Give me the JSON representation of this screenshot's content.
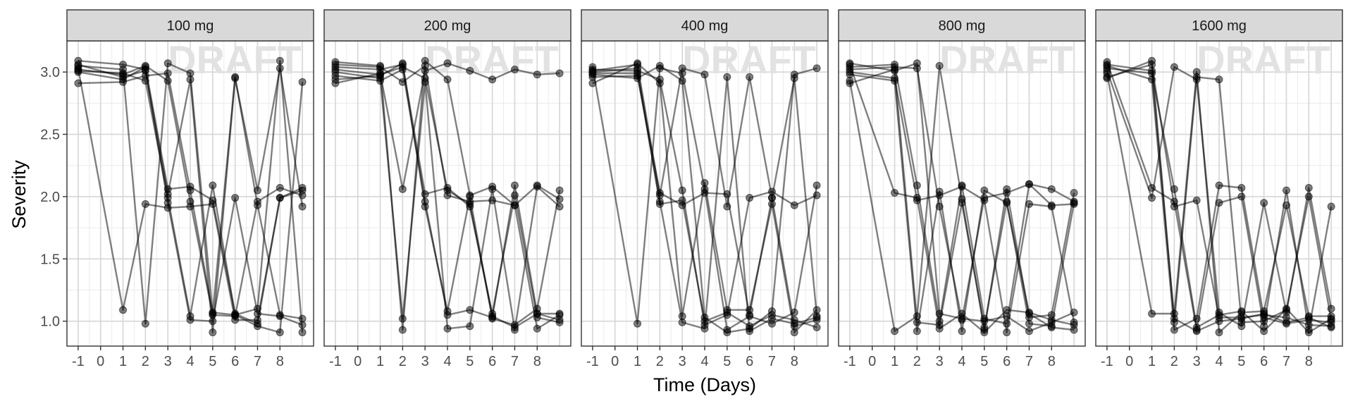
{
  "chart_data": {
    "type": "line",
    "xlabel": "Time (Days)",
    "ylabel": "Severity",
    "watermark": "DRAFT",
    "x_ticks": [
      -1,
      0,
      1,
      2,
      3,
      4,
      5,
      6,
      7,
      8
    ],
    "y_ticks": [
      1.0,
      1.5,
      2.0,
      2.5,
      3.0
    ],
    "y_tick_labels": [
      "1.0",
      "1.5",
      "2.0",
      "2.5",
      "3.0"
    ],
    "xlim": [
      -1.5,
      9.5
    ],
    "ylim": [
      0.8,
      3.25
    ],
    "grid": true,
    "line_color": "#000000",
    "panel_header_color": "#d9d9d9",
    "panels": [
      {
        "label": "100 mg",
        "series": [
          {
            "x": [
              -1,
              1,
              2,
              3,
              4,
              5,
              6,
              7,
              8,
              9
            ],
            "y": [
              3.02,
              2.98,
              3.05,
              2.93,
              1.96,
              1.05,
              1.04,
              1.96,
              2.07,
              2.01
            ]
          },
          {
            "x": [
              -1,
              1,
              2,
              3,
              4,
              5,
              6,
              7,
              8,
              9
            ],
            "y": [
              3.09,
              3.06,
              3.02,
              1.95,
              1.01,
              1.0,
              1.99,
              1.06,
              1.04,
              0.97
            ]
          },
          {
            "x": [
              -1,
              1,
              2,
              3,
              4,
              5,
              6,
              7,
              8,
              9
            ],
            "y": [
              3.0,
              2.94,
              3.04,
              2.06,
              2.08,
              1.97,
              1.06,
              0.98,
              1.99,
              2.07
            ]
          },
          {
            "x": [
              -1,
              1,
              2,
              3,
              4,
              5,
              6,
              7,
              8,
              9
            ],
            "y": [
              2.91,
              2.92,
              2.97,
              2.99,
              2.05,
              1.06,
              2.96,
              1.93,
              1.05,
              1.02
            ]
          },
          {
            "x": [
              -1,
              1,
              2,
              3,
              4,
              5,
              6,
              7,
              8,
              9
            ],
            "y": [
              3.03,
              1.09,
              1.94,
              1.91,
              1.92,
              1.94,
              1.01,
              1.01,
              1.99,
              2.05
            ]
          },
          {
            "x": [
              -1,
              1,
              2,
              3,
              4,
              5,
              6,
              7,
              8,
              9
            ],
            "y": [
              3.05,
              3.02,
              0.98,
              3.07,
              2.99,
              1.07,
              1.05,
              1.1,
              3.09,
              0.91
            ]
          },
          {
            "x": [
              -1,
              1,
              2,
              3,
              4,
              5,
              6,
              7,
              8,
              9
            ],
            "y": [
              3.01,
              2.99,
              2.93,
              1.99,
              1.04,
              2.09,
              1.05,
              0.96,
              0.91,
              2.92
            ]
          },
          {
            "x": [
              -1,
              1,
              2,
              3,
              4,
              5,
              6,
              7,
              8,
              9
            ],
            "y": [
              3.06,
              2.96,
              3.01,
              2.02,
              2.94,
              0.91,
              2.95,
              2.05,
              3.03,
              1.92
            ]
          }
        ]
      },
      {
        "label": "200 mg",
        "series": [
          {
            "x": [
              -1,
              1,
              2,
              3,
              4,
              5,
              6,
              7,
              8,
              9
            ],
            "y": [
              3.02,
              2.98,
              3.04,
              2.95,
              2.05,
              1.94,
              1.04,
              0.95,
              1.06,
              1.01
            ]
          },
          {
            "x": [
              -1,
              1,
              2,
              3,
              4,
              5,
              6,
              7,
              8,
              9
            ],
            "y": [
              3.08,
              3.05,
              0.93,
              3.09,
              2.94,
              2.01,
              2.08,
              1.93,
              2.09,
              1.98
            ]
          },
          {
            "x": [
              -1,
              1,
              2,
              3,
              4,
              5,
              6,
              7,
              8,
              9
            ],
            "y": [
              2.97,
              2.93,
              3.02,
              1.96,
              1.05,
              1.09,
              1.03,
              2.09,
              1.06,
              1.06
            ]
          },
          {
            "x": [
              -1,
              1,
              2,
              3,
              4,
              5,
              6,
              7,
              8,
              9
            ],
            "y": [
              2.91,
              2.99,
              2.06,
              3.01,
              3.07,
              3.01,
              2.94,
              3.02,
              2.98,
              2.99
            ]
          },
          {
            "x": [
              -1,
              1,
              2,
              3,
              4,
              5,
              6,
              7,
              8,
              9
            ],
            "y": [
              3.04,
              3.02,
              3.06,
              2.02,
              2.07,
              1.92,
              1.06,
              2.01,
              1.03,
              0.99
            ]
          },
          {
            "x": [
              -1,
              1,
              2,
              3,
              4,
              5,
              6,
              7,
              8,
              9
            ],
            "y": [
              3.0,
              2.95,
              1.02,
              2.92,
              0.94,
              0.96,
              2.06,
              0.93,
              2.08,
              1.92
            ]
          },
          {
            "x": [
              -1,
              1,
              2,
              3,
              4,
              5,
              6,
              7,
              8,
              9
            ],
            "y": [
              3.06,
              3.04,
              2.92,
              3.05,
              2.01,
              1.96,
              1.97,
              1.93,
              0.94,
              1.05
            ]
          },
          {
            "x": [
              -1,
              1,
              2,
              3,
              4,
              5,
              6,
              7,
              8,
              9
            ],
            "y": [
              2.94,
              2.97,
              3.07,
              1.92,
              1.08,
              2.0,
              1.02,
              0.97,
              1.1,
              2.05
            ]
          }
        ]
      },
      {
        "label": "400 mg",
        "series": [
          {
            "x": [
              -1,
              1,
              2,
              3,
              4,
              5,
              6,
              7,
              8,
              9
            ],
            "y": [
              3.0,
              3.03,
              1.94,
              1.97,
              1.0,
              1.07,
              0.96,
              1.05,
              1.01,
              0.95
            ]
          },
          {
            "x": [
              -1,
              1,
              2,
              3,
              4,
              5,
              6,
              7,
              8,
              9
            ],
            "y": [
              2.96,
              2.97,
              2.03,
              1.93,
              2.03,
              2.02,
              1.05,
              1.99,
              0.96,
              1.01
            ]
          },
          {
            "x": [
              -1,
              1,
              2,
              3,
              4,
              5,
              6,
              7,
              8,
              9
            ],
            "y": [
              3.04,
              0.98,
              3.03,
              2.99,
              2.06,
              0.93,
              1.04,
              0.98,
              1.07,
              2.09
            ]
          },
          {
            "x": [
              -1,
              1,
              2,
              3,
              4,
              5,
              6,
              7,
              8,
              9
            ],
            "y": [
              2.91,
              3.07,
              2.91,
              1.04,
              2.11,
              1.09,
              1.09,
              1.94,
              0.91,
              1.09
            ]
          },
          {
            "x": [
              -1,
              1,
              2,
              3,
              4,
              5,
              6,
              7,
              8,
              9
            ],
            "y": [
              3.02,
              3.01,
              2.94,
              2.05,
              0.97,
              1.05,
              1.99,
              2.04,
              1.93,
              2.01
            ]
          },
          {
            "x": [
              -1,
              1,
              2,
              3,
              4,
              5,
              6,
              7,
              8,
              9
            ],
            "y": [
              2.98,
              2.95,
              3.05,
              2.93,
              1.03,
              0.91,
              0.94,
              1.08,
              2.98,
              3.03
            ]
          },
          {
            "x": [
              -1,
              1,
              2,
              3,
              4,
              5,
              6,
              7,
              8,
              9
            ],
            "y": [
              3.01,
              3.06,
              2.01,
              3.03,
              2.98,
              1.92,
              2.96,
              1.99,
              2.95,
              1.04
            ]
          },
          {
            "x": [
              -1,
              1,
              2,
              3,
              4,
              5,
              6,
              7,
              8,
              9
            ],
            "y": [
              2.99,
              2.99,
              1.96,
              0.99,
              0.94,
              2.96,
              0.92,
              1.02,
              0.98,
              1.03
            ]
          }
        ]
      },
      {
        "label": "800 mg",
        "series": [
          {
            "x": [
              -1,
              1,
              2,
              3,
              4,
              5,
              6,
              7,
              8,
              9
            ],
            "y": [
              3.02,
              3.04,
              3.03,
              1.92,
              1.01,
              1.99,
              2.03,
              2.1,
              2.06,
              1.96
            ]
          },
          {
            "x": [
              -1,
              1,
              2,
              3,
              4,
              5,
              6,
              7,
              8,
              9
            ],
            "y": [
              3.06,
              2.03,
              1.99,
              0.94,
              1.06,
              0.91,
              1.09,
              1.07,
              1.01,
              0.97
            ]
          },
          {
            "x": [
              -1,
              1,
              2,
              3,
              4,
              5,
              6,
              7,
              8,
              9
            ],
            "y": [
              2.98,
              2.93,
              0.92,
              2.04,
              0.92,
              2.05,
              1.95,
              1.06,
              0.95,
              0.93
            ]
          },
          {
            "x": [
              -1,
              1,
              2,
              3,
              4,
              5,
              6,
              7,
              8,
              9
            ],
            "y": [
              3.04,
              3.06,
              2.09,
              1.0,
              2.09,
              1.02,
              0.98,
              2.1,
              1.93,
              1.94
            ]
          },
          {
            "x": [
              -1,
              1,
              2,
              3,
              4,
              5,
              6,
              7,
              8,
              9
            ],
            "y": [
              2.93,
              0.92,
              1.04,
              3.05,
              1.98,
              0.93,
              2.06,
              1.03,
              1.05,
              2.03
            ]
          },
          {
            "x": [
              -1,
              1,
              2,
              3,
              4,
              5,
              6,
              7,
              8,
              9
            ],
            "y": [
              3.07,
              3.01,
              3.07,
              1.06,
              1.02,
              1.0,
              1.04,
              0.92,
              0.99,
              1.07
            ]
          },
          {
            "x": [
              -1,
              1,
              2,
              3,
              4,
              5,
              6,
              7,
              8,
              9
            ],
            "y": [
              3.0,
              2.95,
              1.97,
              2.01,
              2.08,
              1.97,
              0.91,
              1.94,
              1.92,
              0.99
            ]
          },
          {
            "x": [
              -1,
              1,
              2,
              3,
              4,
              5,
              6,
              7,
              8,
              9
            ],
            "y": [
              2.91,
              3.02,
              0.99,
              0.97,
              1.95,
              0.95,
              1.96,
              0.98,
              0.96,
              1.95
            ]
          }
        ]
      },
      {
        "label": "1600 mg",
        "series": [
          {
            "x": [
              -1,
              1,
              2,
              3,
              4,
              5,
              6,
              7,
              8,
              9
            ],
            "y": [
              3.03,
              2.99,
              2.06,
              0.95,
              1.05,
              1.08,
              0.92,
              1.1,
              0.91,
              1.02
            ]
          },
          {
            "x": [
              -1,
              1,
              2,
              3,
              4,
              5,
              6,
              7,
              8,
              9
            ],
            "y": [
              2.96,
              3.06,
              1.92,
              1.97,
              1.03,
              1.03,
              1.05,
              1.03,
              0.97,
              0.96
            ]
          },
          {
            "x": [
              -1,
              1,
              2,
              3,
              4,
              5,
              6,
              7,
              8,
              9
            ],
            "y": [
              3.08,
              2.07,
              1.96,
              0.93,
              1.95,
              2.0,
              0.96,
              2.05,
              0.93,
              1.92
            ]
          },
          {
            "x": [
              -1,
              1,
              2,
              3,
              4,
              5,
              6,
              7,
              8,
              9
            ],
            "y": [
              3.01,
              1.99,
              3.04,
              2.94,
              1.07,
              0.96,
              1.95,
              1.07,
              2.07,
              1.1
            ]
          },
          {
            "x": [
              -1,
              1,
              2,
              3,
              4,
              5,
              6,
              7,
              8,
              9
            ],
            "y": [
              2.99,
              1.06,
              1.06,
              3.0,
              0.91,
              1.07,
              1.08,
              1.93,
              1.04,
              1.04
            ]
          },
          {
            "x": [
              -1,
              1,
              2,
              3,
              4,
              5,
              6,
              7,
              8,
              9
            ],
            "y": [
              3.05,
              2.94,
              0.93,
              1.02,
              2.09,
              2.07,
              1.03,
              0.98,
              1.01,
              0.99
            ]
          },
          {
            "x": [
              -1,
              1,
              2,
              3,
              4,
              5,
              6,
              7,
              8,
              9
            ],
            "y": [
              2.95,
              3.09,
              0.99,
              2.96,
              2.94,
              0.99,
              1.0,
              1.09,
              2.0,
              1.01
            ]
          },
          {
            "x": [
              -1,
              1,
              2,
              3,
              4,
              5,
              6,
              7,
              8,
              9
            ],
            "y": [
              3.06,
              3.01,
              1.02,
              0.92,
              1.0,
              1.02,
              1.06,
              0.99,
              1.03,
              0.95
            ]
          }
        ]
      }
    ]
  }
}
